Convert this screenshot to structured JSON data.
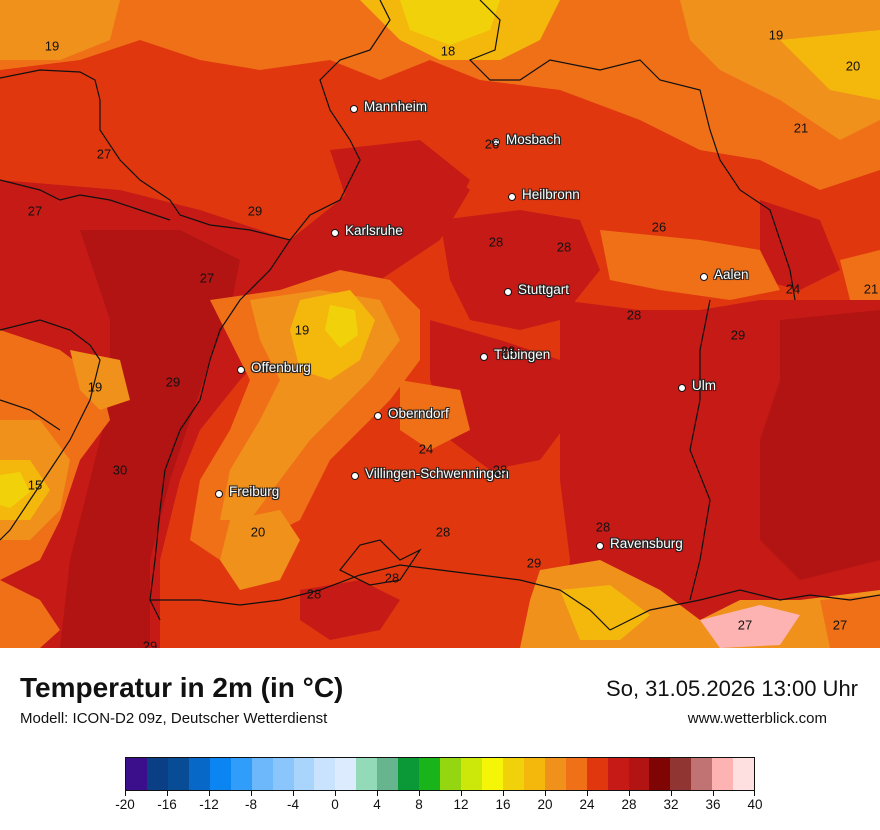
{
  "map": {
    "cities": [
      {
        "name": "Mannheim"
      },
      {
        "name": "Mosbach"
      },
      {
        "name": "Heilbronn"
      },
      {
        "name": "Karlsruhe"
      },
      {
        "name": "Stuttgart"
      },
      {
        "name": "Aalen"
      },
      {
        "name": "Tübingen"
      },
      {
        "name": "Offenburg"
      },
      {
        "name": "Ulm"
      },
      {
        "name": "Oberndorf"
      },
      {
        "name": "Villingen-Schwenningen"
      },
      {
        "name": "Freiburg"
      },
      {
        "name": "Ravensburg"
      }
    ],
    "temperature_values": [
      "19",
      "18",
      "19",
      "20",
      "27",
      "21",
      "26",
      "27",
      "29",
      "26",
      "28",
      "28",
      "27",
      "28",
      "24",
      "21",
      "19",
      "28",
      "29",
      "19",
      "29",
      "30",
      "24",
      "28",
      "15",
      "20",
      "28",
      "28",
      "28",
      "29",
      "28",
      "29",
      "27",
      "27"
    ]
  },
  "footer": {
    "title": "Temperatur in 2m (in °C)",
    "model": "Modell: ICON-D2 09z, Deutscher Wetterdienst",
    "datetime": "So, 31.05.2026 13:00 Uhr",
    "website": "www.wetterblick.com"
  },
  "legend": {
    "tick_labels": [
      "-20",
      "-16",
      "-12",
      "-8",
      "-4",
      "0",
      "4",
      "8",
      "12",
      "16",
      "20",
      "24",
      "28",
      "32",
      "36",
      "40"
    ],
    "colors": [
      "#3b0f8c",
      "#0a3f86",
      "#084c96",
      "#0868c8",
      "#0a85f2",
      "#2f9df9",
      "#6cb8fb",
      "#8ac6fc",
      "#a9d5fd",
      "#c9e3fe",
      "#dcecfe",
      "#93dbb8",
      "#66b58e",
      "#0b9938",
      "#18b41a",
      "#94d60f",
      "#cce80a",
      "#f5f508",
      "#f1d20a",
      "#f4b70c",
      "#f0911b",
      "#f07018",
      "#e0370f",
      "#c61a17",
      "#b21313",
      "#7f0505",
      "#913533",
      "#c17272",
      "#fdb3b1",
      "#fee0e0"
    ]
  }
}
